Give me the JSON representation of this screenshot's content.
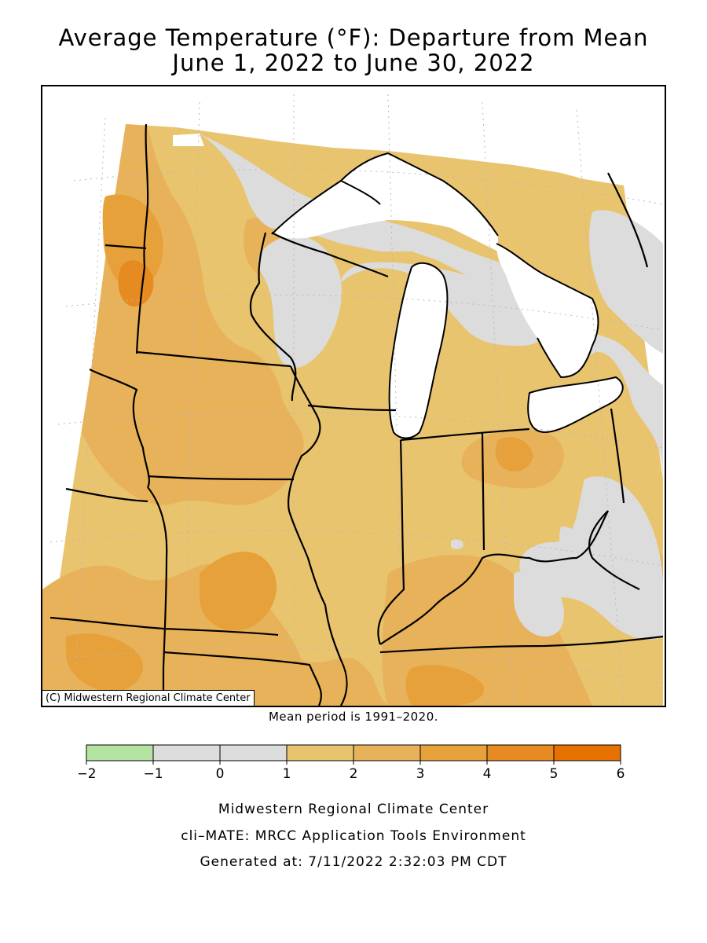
{
  "title": {
    "line1": "Average Temperature (°F): Departure from Mean",
    "line2": "June 1, 2022 to June 30, 2022"
  },
  "map": {
    "credit": "(C) Midwestern Regional Climate Center",
    "mean_period": "Mean period is 1991–2020."
  },
  "legend": {
    "bins": [
      {
        "from": -2,
        "to": -1,
        "color": "#b3e3a0"
      },
      {
        "from": -1,
        "to": 0,
        "color": "#dcdcdc"
      },
      {
        "from": 0,
        "to": 1,
        "color": "#dcdcdc"
      },
      {
        "from": 1,
        "to": 2,
        "color": "#e9c46f"
      },
      {
        "from": 2,
        "to": 3,
        "color": "#e8b25a"
      },
      {
        "from": 3,
        "to": 4,
        "color": "#e7a13b"
      },
      {
        "from": 4,
        "to": 5,
        "color": "#e68a22"
      },
      {
        "from": 5,
        "to": 6,
        "color": "#e67100"
      }
    ],
    "tick_labels": [
      "−2",
      "−1",
      "0",
      "1",
      "2",
      "3",
      "4",
      "5",
      "6"
    ]
  },
  "footer": {
    "line1": "Midwestern Regional Climate Center",
    "line2": "cli–MATE: MRCC Application Tools Environment",
    "line3": "Generated at: 7/11/2022 2:32:03 PM CDT"
  }
}
